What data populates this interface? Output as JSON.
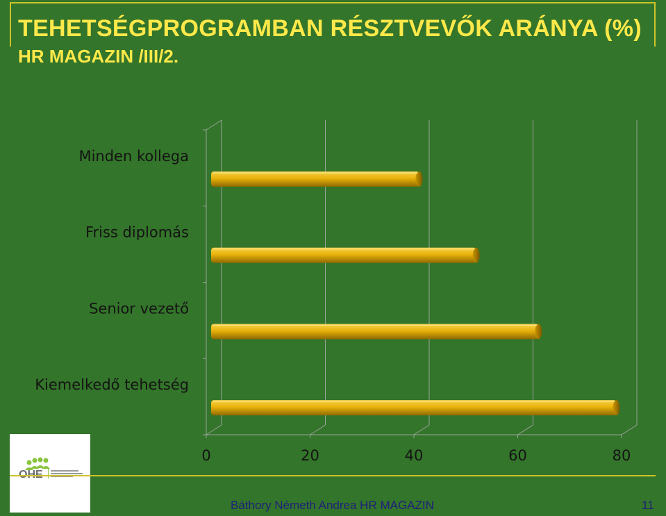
{
  "slide": {
    "title": "TEHETSÉGPROGRAMBAN RÉSZTVEVŐK ARÁNYA  (%)",
    "subtitle": "HR MAGAZIN /III/2.",
    "footer": "Báthory Németh Andrea  HR MAGAZIN",
    "page_number": "11"
  },
  "logo": {
    "name": "OHE",
    "text": "Országos Humánmenedzsment Egyesület"
  },
  "colors": {
    "background": "#33752a",
    "bar": "#e8b20a",
    "title": "#ffe94a",
    "footer": "#20207a"
  },
  "chart_data": {
    "type": "bar",
    "orientation": "horizontal",
    "categories": [
      "Minden kollega",
      "Friss diplomás",
      "Senior vezető",
      "Kiemelkedő tehetség"
    ],
    "values": [
      41,
      52,
      64,
      79
    ],
    "xlim": [
      0,
      80
    ],
    "xticks": [
      "0",
      "20",
      "40",
      "60",
      "80"
    ],
    "grid": true
  }
}
